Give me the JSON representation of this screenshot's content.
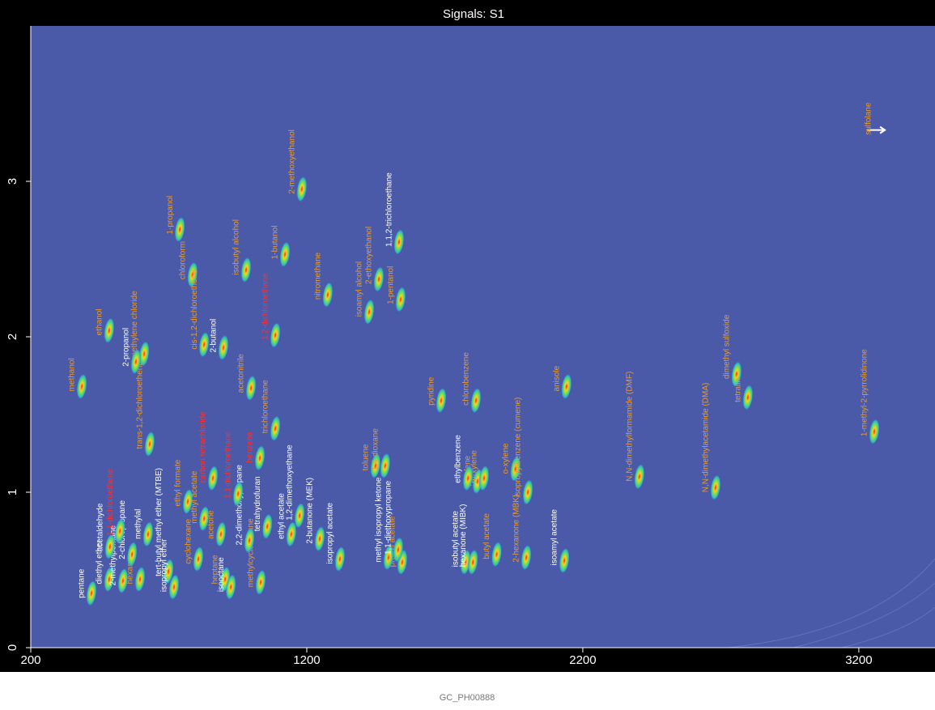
{
  "chart_data": {
    "type": "scatter",
    "title": "Signals: S1",
    "footer": "GC_PH00888",
    "xlim": [
      200,
      3476
    ],
    "ylim": [
      0,
      4
    ],
    "xticks": [
      200,
      1200,
      2200,
      3200
    ],
    "yticks": [
      0,
      1,
      2,
      3
    ],
    "background": "#4a5aa8",
    "series": [
      {
        "color": "#e89a30",
        "points": [
          {
            "label": "methanol",
            "x": 385,
            "y": 1.68
          },
          {
            "label": "ethanol",
            "x": 484,
            "y": 2.04
          },
          {
            "label": "methylene chloride",
            "x": 611,
            "y": 1.89
          },
          {
            "label": "trans-1,2-dichloroethene",
            "x": 631,
            "y": 1.31
          },
          {
            "label": "1-propanol",
            "x": 740,
            "y": 2.69
          },
          {
            "label": "chloroform",
            "x": 786,
            "y": 2.4
          },
          {
            "label": "cis-1,2-dichloroethene",
            "x": 828,
            "y": 1.95
          },
          {
            "label": "isobutyl alcohol",
            "x": 980,
            "y": 2.43
          },
          {
            "label": "acetonitrile",
            "x": 998,
            "y": 1.67
          },
          {
            "label": "1-butanol",
            "x": 1121,
            "y": 2.53
          },
          {
            "label": "2-methoxyethanol",
            "x": 1182,
            "y": 2.95
          },
          {
            "label": "nitromethane",
            "x": 1276,
            "y": 2.27
          },
          {
            "label": "isoamyl alcohol",
            "x": 1426,
            "y": 2.16
          },
          {
            "label": "2-ethoxyethanol",
            "x": 1461,
            "y": 2.37
          },
          {
            "label": "1-pentanol",
            "x": 1540,
            "y": 2.24
          },
          {
            "label": "trichloroethane",
            "x": 1086,
            "y": 1.41
          },
          {
            "label": "pyridine",
            "x": 1687,
            "y": 1.59
          },
          {
            "label": "chlorobenzene",
            "x": 1813,
            "y": 1.59
          },
          {
            "label": "anisole",
            "x": 2141,
            "y": 1.68
          },
          {
            "label": "N,N-dimethylformamide (DMF)",
            "x": 2405,
            "y": 1.1
          },
          {
            "label": "N,N-dimethylacetamide (DMA)",
            "x": 2681,
            "y": 1.03
          },
          {
            "label": "dimethyl sulfoxide",
            "x": 2757,
            "y": 1.76
          },
          {
            "label": "tetralin",
            "x": 2798,
            "y": 1.61
          },
          {
            "label": "1-methyl-2-pyrrolidinone",
            "x": 3256,
            "y": 1.39
          },
          {
            "label": "sulfolane",
            "x": 3271,
            "y": 3.33,
            "marker": "arrow"
          },
          {
            "label": "hexane",
            "x": 596,
            "y": 0.44
          },
          {
            "label": "ethyl formate",
            "x": 769,
            "y": 0.94
          },
          {
            "label": "methyl acetate",
            "x": 828,
            "y": 0.83
          },
          {
            "label": "cyclohexane",
            "x": 807,
            "y": 0.57
          },
          {
            "label": "acetone",
            "x": 889,
            "y": 0.73
          },
          {
            "label": "heptane",
            "x": 904,
            "y": 0.44
          },
          {
            "label": "methylcyclohexane",
            "x": 1033,
            "y": 0.42
          },
          {
            "label": "toluene",
            "x": 1449,
            "y": 1.17
          },
          {
            "label": "1,4-dioxane",
            "x": 1484,
            "y": 1.17
          },
          {
            "label": "propyl acetate",
            "x": 1546,
            "y": 0.55
          },
          {
            "label": "p-xylene",
            "x": 1819,
            "y": 1.07
          },
          {
            "label": "m-xylene",
            "x": 1842,
            "y": 1.09
          },
          {
            "label": "o-xylene",
            "x": 1956,
            "y": 1.15
          },
          {
            "label": "isopropylbenzene (cumene)",
            "x": 2001,
            "y": 1.0
          },
          {
            "label": "butyl acetate",
            "x": 1888,
            "y": 0.6
          },
          {
            "label": "2-hexanone (MBK)",
            "x": 1995,
            "y": 0.58
          }
        ]
      },
      {
        "color": "#ffffff",
        "points": [
          {
            "label": "2-propanol",
            "x": 581,
            "y": 1.84
          },
          {
            "label": "2-butanol",
            "x": 898,
            "y": 1.93
          },
          {
            "label": "1,1,2-trichloroethane",
            "x": 1534,
            "y": 2.61
          },
          {
            "label": "pentane",
            "x": 420,
            "y": 0.35
          },
          {
            "label": "diethyl ether",
            "x": 484,
            "y": 0.44
          },
          {
            "label": "2-methylpentane",
            "x": 534,
            "y": 0.43
          },
          {
            "label": "acetaldehyde",
            "x": 487,
            "y": 0.65
          },
          {
            "label": "2-chloropropane",
            "x": 567,
            "y": 0.6
          },
          {
            "label": "tert-butyl methyl ether (MTBE)",
            "x": 699,
            "y": 0.49
          },
          {
            "label": "isopropyl ether",
            "x": 719,
            "y": 0.39
          },
          {
            "label": "methylal",
            "x": 625,
            "y": 0.73
          },
          {
            "label": "isooctane",
            "x": 925,
            "y": 0.39
          },
          {
            "label": "2,2-dimethoxypropane",
            "x": 992,
            "y": 0.69
          },
          {
            "label": "tetrahydrofuran",
            "x": 1057,
            "y": 0.78
          },
          {
            "label": "ethyl acetate",
            "x": 1144,
            "y": 0.73
          },
          {
            "label": "1,2-dimethoxyethane",
            "x": 1174,
            "y": 0.85
          },
          {
            "label": "2-butanone (MEK)",
            "x": 1247,
            "y": 0.7
          },
          {
            "label": "isopropyl acetate",
            "x": 1320,
            "y": 0.57
          },
          {
            "label": "methyl isopropyl ketone",
            "x": 1496,
            "y": 0.58
          },
          {
            "label": "1,1-diethoxypropane",
            "x": 1531,
            "y": 0.63
          },
          {
            "label": "ethylbenzene",
            "x": 1784,
            "y": 1.09
          },
          {
            "label": "isobutyl acetate",
            "x": 1775,
            "y": 0.55
          },
          {
            "label": "hexanone (MIBK)",
            "x": 1802,
            "y": 0.55
          },
          {
            "label": "isoamyl acetate",
            "x": 2133,
            "y": 0.56
          }
        ]
      },
      {
        "color": "#ff3030",
        "points": [
          {
            "label": "1,2-dichloroethane",
            "x": 1086,
            "y": 2.01
          },
          {
            "label": "1,1-dichloroethene",
            "x": 523,
            "y": 0.75
          },
          {
            "label": "carbon tetrachloride",
            "x": 860,
            "y": 1.09
          },
          {
            "label": "1,1-dichloroethane",
            "x": 951,
            "y": 0.99
          },
          {
            "label": "benzene",
            "x": 1030,
            "y": 1.22
          }
        ]
      }
    ]
  }
}
